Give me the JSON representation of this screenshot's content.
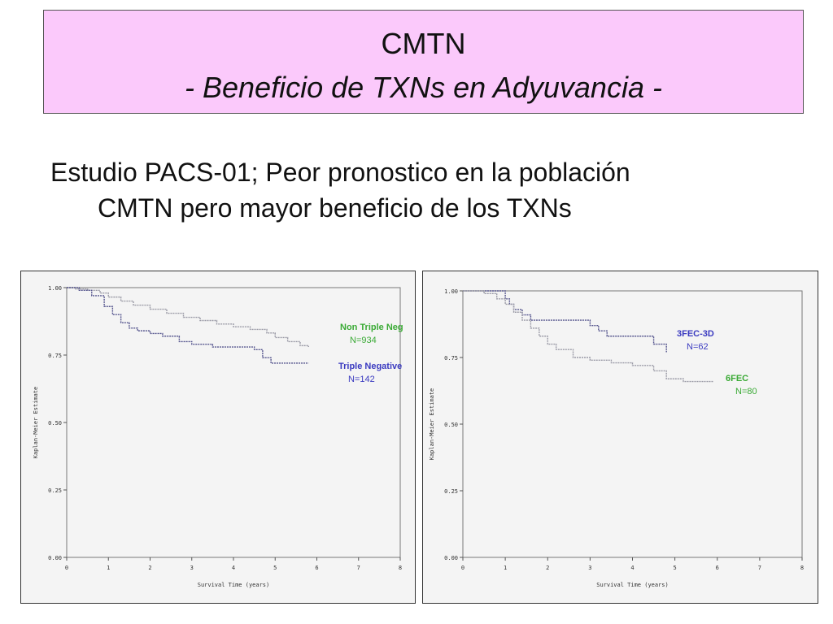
{
  "title": {
    "line1": "CMTN",
    "line2": "- Beneficio de TXNs en Adyuvancia  -"
  },
  "subtitle": {
    "line1": "Estudio PACS-01; Peor pronostico en la población",
    "line2": "CMTN pero mayor beneficio de los TXNs"
  },
  "colors": {
    "title_bg": "#fbc9fb",
    "legend_green": "#3aaa35",
    "legend_blue": "#3a3ac0",
    "curve_blue": "#56568e",
    "curve_green": "#3a8a3a",
    "curve_gray": "#9a9aa6"
  },
  "chart_data": [
    {
      "type": "line",
      "xlabel": "Survival Time (years)",
      "ylabel": "Kaplan-Meier Estimate",
      "xlim": [
        0,
        8
      ],
      "ylim": [
        0,
        1
      ],
      "x_ticks": [
        "0",
        "1",
        "2",
        "3",
        "4",
        "5",
        "6",
        "7",
        "8"
      ],
      "y_ticks": [
        "0.00",
        "0.25",
        "0.50",
        "0.75",
        "1.00"
      ],
      "legend": [
        {
          "label": "Non Triple Neg",
          "n": "N=934",
          "color": "#3aaa35"
        },
        {
          "label": "Triple Negative",
          "n": "N=142",
          "color": "#3a3ac0"
        }
      ],
      "series": [
        {
          "name": "Non Triple Neg",
          "color": "#9a9aa6",
          "x": [
            0,
            0.2,
            0.5,
            0.8,
            1.0,
            1.3,
            1.6,
            2.0,
            2.4,
            2.8,
            3.2,
            3.6,
            4.0,
            4.4,
            4.8,
            5.0,
            5.3,
            5.6,
            5.8
          ],
          "y": [
            1.0,
            0.995,
            0.99,
            0.98,
            0.965,
            0.95,
            0.935,
            0.92,
            0.905,
            0.89,
            0.878,
            0.865,
            0.855,
            0.845,
            0.832,
            0.815,
            0.8,
            0.785,
            0.78
          ]
        },
        {
          "name": "Triple Negative",
          "color": "#56568e",
          "x": [
            0,
            0.3,
            0.6,
            0.9,
            1.1,
            1.3,
            1.5,
            1.7,
            2.0,
            2.3,
            2.7,
            3.0,
            3.5,
            4.0,
            4.5,
            4.7,
            4.9,
            5.8
          ],
          "y": [
            1.0,
            0.99,
            0.97,
            0.93,
            0.9,
            0.87,
            0.85,
            0.84,
            0.83,
            0.82,
            0.8,
            0.79,
            0.78,
            0.78,
            0.77,
            0.74,
            0.72,
            0.72
          ]
        }
      ]
    },
    {
      "type": "line",
      "xlabel": "Survival Time (years)",
      "ylabel": "Kaplan-Meier Estimate",
      "xlim": [
        0,
        8
      ],
      "ylim": [
        0,
        1
      ],
      "x_ticks": [
        "0",
        "1",
        "2",
        "3",
        "4",
        "5",
        "6",
        "7",
        "8"
      ],
      "y_ticks": [
        "0.00",
        "0.25",
        "0.50",
        "0.75",
        "1.00"
      ],
      "legend": [
        {
          "label": "3FEC-3D",
          "n": "N=62",
          "color": "#3a3ac0"
        },
        {
          "label": "6FEC",
          "n": "N=80",
          "color": "#3aaa35"
        }
      ],
      "series": [
        {
          "name": "3FEC-3D",
          "color": "#56568e",
          "x": [
            0,
            0.8,
            1.0,
            1.1,
            1.2,
            1.4,
            1.6,
            1.8,
            2.9,
            3.0,
            3.2,
            3.4,
            4.0,
            4.4,
            4.5,
            4.8
          ],
          "y": [
            1.0,
            1.0,
            0.97,
            0.95,
            0.93,
            0.91,
            0.89,
            0.89,
            0.89,
            0.87,
            0.85,
            0.83,
            0.83,
            0.83,
            0.8,
            0.77
          ]
        },
        {
          "name": "6FEC",
          "color": "#9a9aa6",
          "x": [
            0,
            0.5,
            0.8,
            1.0,
            1.2,
            1.4,
            1.6,
            1.8,
            2.0,
            2.2,
            2.6,
            3.0,
            3.5,
            4.0,
            4.5,
            4.8,
            5.2,
            5.9
          ],
          "y": [
            1.0,
            0.99,
            0.97,
            0.95,
            0.92,
            0.89,
            0.86,
            0.83,
            0.8,
            0.78,
            0.75,
            0.74,
            0.73,
            0.72,
            0.7,
            0.67,
            0.66,
            0.66
          ]
        }
      ]
    }
  ]
}
